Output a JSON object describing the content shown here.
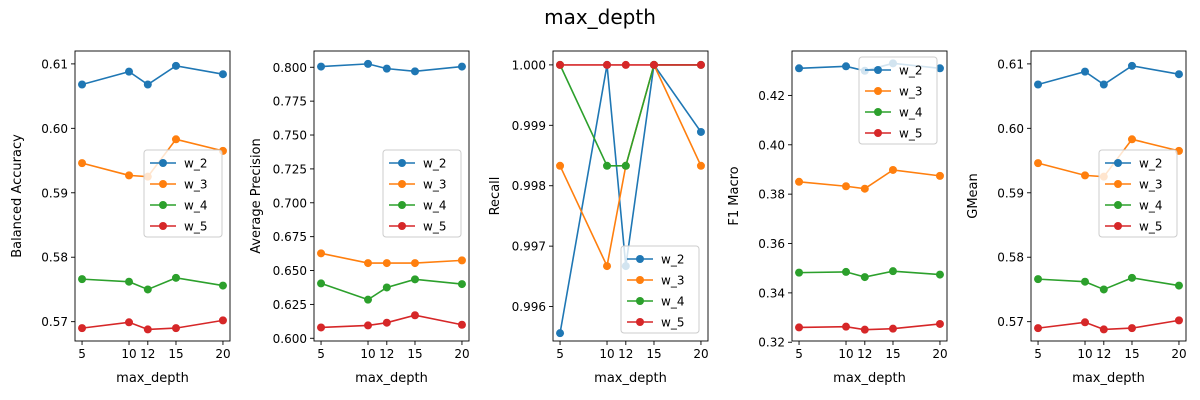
{
  "suptitle": "max_depth",
  "colors": {
    "w_2": "#1f77b4",
    "w_3": "#ff7f0e",
    "w_4": "#2ca02c",
    "w_5": "#d62728"
  },
  "chart_data": [
    {
      "type": "line",
      "xlabel": "max_depth",
      "ylabel": "Balanced Accuracy",
      "x": [
        5,
        10,
        12,
        15,
        20
      ],
      "xticks": [
        5,
        10,
        12,
        15,
        20
      ],
      "ylim": [
        0.567,
        0.612
      ],
      "yticks": [
        0.57,
        0.58,
        0.59,
        0.6,
        0.61
      ],
      "ytick_labels": [
        "0.57",
        "0.58",
        "0.59",
        "0.60",
        "0.61"
      ],
      "legend": "center-right",
      "series": [
        {
          "name": "w_2",
          "values": [
            0.6068,
            0.6088,
            0.6068,
            0.6097,
            0.6084
          ]
        },
        {
          "name": "w_3",
          "values": [
            0.5946,
            0.5927,
            0.5925,
            0.5983,
            0.5965
          ]
        },
        {
          "name": "w_4",
          "values": [
            0.5766,
            0.5762,
            0.575,
            0.5768,
            0.5756
          ]
        },
        {
          "name": "w_5",
          "values": [
            0.569,
            0.5699,
            0.5688,
            0.569,
            0.5702
          ]
        }
      ]
    },
    {
      "type": "line",
      "xlabel": "max_depth",
      "ylabel": "Average Precision",
      "x": [
        5,
        10,
        12,
        15,
        20
      ],
      "xticks": [
        5,
        10,
        12,
        15,
        20
      ],
      "ylim": [
        0.598,
        0.812
      ],
      "yticks": [
        0.6,
        0.625,
        0.65,
        0.675,
        0.7,
        0.725,
        0.75,
        0.775,
        0.8
      ],
      "ytick_labels": [
        "0.600",
        "0.625",
        "0.650",
        "0.675",
        "0.700",
        "0.725",
        "0.750",
        "0.775",
        "0.800"
      ],
      "legend": "center-right",
      "series": [
        {
          "name": "w_2",
          "values": [
            0.8005,
            0.8025,
            0.799,
            0.797,
            0.8005
          ]
        },
        {
          "name": "w_3",
          "values": [
            0.6627,
            0.6555,
            0.6555,
            0.6555,
            0.6575
          ]
        },
        {
          "name": "w_4",
          "values": [
            0.6405,
            0.6285,
            0.6375,
            0.6435,
            0.64
          ]
        },
        {
          "name": "w_5",
          "values": [
            0.608,
            0.6095,
            0.6115,
            0.617,
            0.61
          ]
        }
      ]
    },
    {
      "type": "line",
      "xlabel": "max_depth",
      "ylabel": "Recall",
      "x": [
        5,
        10,
        12,
        15,
        20
      ],
      "xticks": [
        5,
        10,
        12,
        15,
        20
      ],
      "ylim": [
        0.99543,
        1.00023
      ],
      "yticks": [
        0.996,
        0.997,
        0.998,
        0.999,
        1.0
      ],
      "ytick_labels": [
        "0.996",
        "0.997",
        "0.998",
        "0.999",
        "1.000"
      ],
      "legend": "lower-right",
      "series": [
        {
          "name": "w_2",
          "values": [
            0.99556,
            1.0,
            0.99667,
            1.0,
            0.99889
          ]
        },
        {
          "name": "w_3",
          "values": [
            0.99833,
            0.99667,
            0.99833,
            1.0,
            0.99833
          ]
        },
        {
          "name": "w_4",
          "values": [
            1.0,
            0.99833,
            0.99833,
            1.0,
            1.0
          ]
        },
        {
          "name": "w_5",
          "values": [
            1.0,
            1.0,
            1.0,
            1.0,
            1.0
          ]
        }
      ]
    },
    {
      "type": "line",
      "xlabel": "max_depth",
      "ylabel": "F1 Macro",
      "x": [
        5,
        10,
        12,
        15,
        20
      ],
      "xticks": [
        5,
        10,
        12,
        15,
        20
      ],
      "ylim": [
        0.3205,
        0.438
      ],
      "yticks": [
        0.32,
        0.34,
        0.36,
        0.38,
        0.4,
        0.42
      ],
      "ytick_labels": [
        "0.32",
        "0.34",
        "0.36",
        "0.38",
        "0.40",
        "0.42"
      ],
      "legend": "upper-right",
      "series": [
        {
          "name": "w_2",
          "values": [
            0.431,
            0.4318,
            0.43,
            0.433,
            0.431
          ]
        },
        {
          "name": "w_3",
          "values": [
            0.385,
            0.3832,
            0.3822,
            0.3898,
            0.3874
          ]
        },
        {
          "name": "w_4",
          "values": [
            0.3482,
            0.3485,
            0.3464,
            0.3488,
            0.3474
          ]
        },
        {
          "name": "w_5",
          "values": [
            0.326,
            0.3263,
            0.3251,
            0.3255,
            0.3274
          ]
        }
      ]
    },
    {
      "type": "line",
      "xlabel": "max_depth",
      "ylabel": "GMean",
      "x": [
        5,
        10,
        12,
        15,
        20
      ],
      "xticks": [
        5,
        10,
        12,
        15,
        20
      ],
      "ylim": [
        0.567,
        0.612
      ],
      "yticks": [
        0.57,
        0.58,
        0.59,
        0.6,
        0.61
      ],
      "ytick_labels": [
        "0.57",
        "0.58",
        "0.59",
        "0.60",
        "0.61"
      ],
      "legend": "center-right",
      "series": [
        {
          "name": "w_2",
          "values": [
            0.6068,
            0.6088,
            0.6068,
            0.6097,
            0.6084
          ]
        },
        {
          "name": "w_3",
          "values": [
            0.5946,
            0.5927,
            0.5925,
            0.5983,
            0.5965
          ]
        },
        {
          "name": "w_4",
          "values": [
            0.5766,
            0.5762,
            0.575,
            0.5768,
            0.5756
          ]
        },
        {
          "name": "w_5",
          "values": [
            0.569,
            0.5699,
            0.5688,
            0.569,
            0.5702
          ]
        }
      ]
    }
  ]
}
